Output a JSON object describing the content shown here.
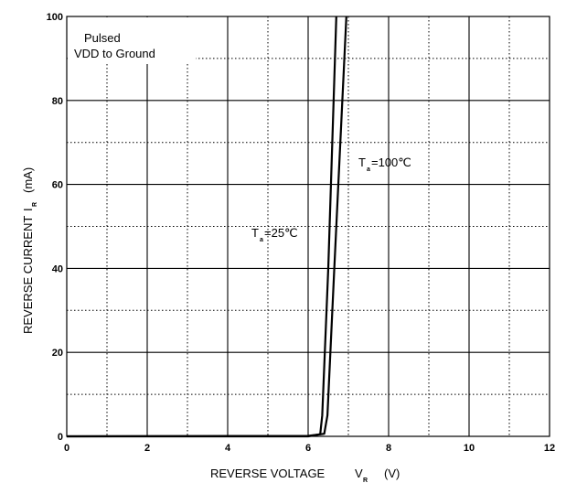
{
  "chart_data": {
    "type": "line",
    "xlabel": {
      "main": "REVERSE VOLTAGE",
      "symbol": "V",
      "sub": "R",
      "unit": "(V)"
    },
    "ylabel": {
      "main": "REVERSE CURRENT",
      "symbol": "I",
      "sub": "R",
      "unit": "(mA)"
    },
    "xlim": [
      0,
      12
    ],
    "ylim": [
      0,
      100
    ],
    "xticks": [
      "0",
      "2",
      "4",
      "6",
      "8",
      "10",
      "12"
    ],
    "yticks": [
      "0",
      "20",
      "40",
      "60",
      "80",
      "100"
    ],
    "grid": {
      "major": "solid",
      "minor": "dotted"
    },
    "annotations": {
      "line1": "Pulsed",
      "line2": "VDD to Ground"
    },
    "series": [
      {
        "name": "T_a=25°C",
        "label": {
          "symbol": "T",
          "sub": "a",
          "rest": "=25℃"
        },
        "x": [
          0,
          6.0,
          6.3,
          6.35,
          6.5,
          6.6,
          6.7
        ],
        "y": [
          0,
          0,
          0.5,
          5,
          40,
          70,
          100
        ]
      },
      {
        "name": "T_a=100°C",
        "label": {
          "symbol": "T",
          "sub": "a",
          "rest": "=100℃"
        },
        "x": [
          0,
          6.0,
          6.4,
          6.48,
          6.65,
          6.8,
          6.95
        ],
        "y": [
          0,
          0.1,
          0.6,
          5,
          40,
          70,
          100
        ]
      }
    ]
  }
}
